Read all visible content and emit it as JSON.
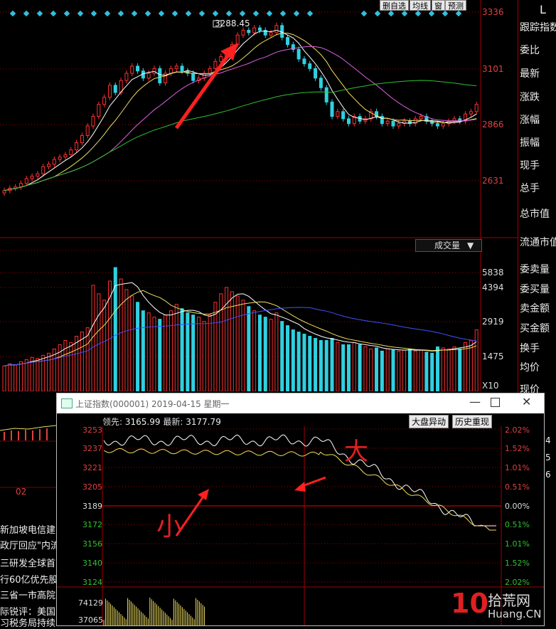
{
  "toolbar": {
    "delete_label": "删自选",
    "ma_label": "均线",
    "window_label": "窗",
    "forecast_label": "预测"
  },
  "main_price_axis": {
    "top": "3336",
    "l2": "3101",
    "l3": "2866",
    "l4": "2631"
  },
  "peak_label": "3288.45",
  "volume_axis": {
    "l1": "5838",
    "l2": "4394",
    "l3": "2919",
    "l4": "1475",
    "unit": "X10"
  },
  "volume_dropdown": "成交量",
  "date_label": "02",
  "right_panel": {
    "top": "L",
    "items": [
      "跟踪指数",
      "委比",
      "最新",
      "涨跌",
      "涨幅",
      "振幅",
      "现手",
      "总手",
      "总市值",
      "流通市值",
      "委卖量",
      "委买量",
      "卖金额",
      "买金额",
      "换手",
      "均价",
      "现价"
    ]
  },
  "right_panel_numbers": [
    "4",
    "5",
    "6"
  ],
  "news": [
    "新加坡电信建",
    "政厅回应\"内流",
    "三研发全球首",
    "行60亿优先股",
    "三省一市高院",
    "际锐评：美国",
    "习税务局持续"
  ],
  "popup": {
    "title": "上证指数(000001) 2019-04-15 星期一",
    "lead_label": "领先:",
    "lead_value": "3165.99",
    "latest_label": "最新:",
    "latest_value": "3177.79",
    "btn_market": "大盘异动",
    "btn_history": "历史重现",
    "left_axis": [
      "3253",
      "3237",
      "3221",
      "3205",
      "3189",
      "3172",
      "3156",
      "3140",
      "3124"
    ],
    "right_axis": [
      "2.02%",
      "1.52%",
      "1.01%",
      "0.51%",
      "0.00%",
      "0.51%",
      "1.01%",
      "1.52%",
      "2.02%"
    ],
    "vol_axis": [
      "74129",
      "37065"
    ],
    "annot_big": "大",
    "annot_small": "小"
  },
  "watermark": {
    "number": "10",
    "name": "拾荒网",
    "url": "Huang.CN"
  }
}
